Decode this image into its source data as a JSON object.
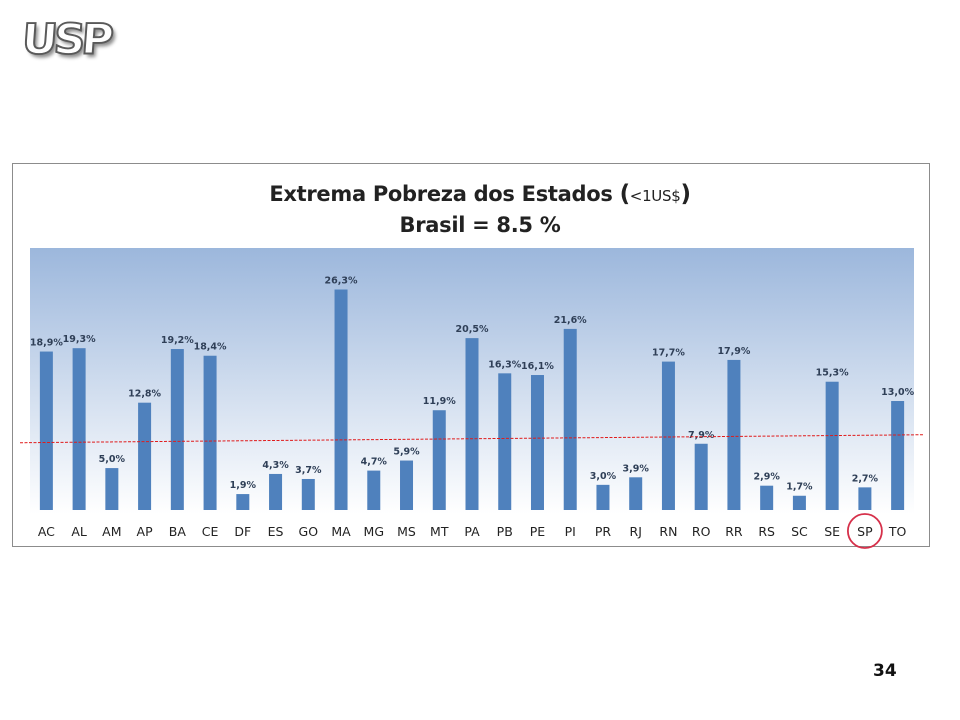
{
  "logo": {
    "text": "USP"
  },
  "page_number": "34",
  "colors": {
    "bar": "#4f81bd",
    "plot_top": "#9cb7dc",
    "plot_bottom": "#ffffff",
    "reference_line": "#e01b1b",
    "highlight_circle": "#d6304a"
  },
  "chart_data": {
    "type": "bar",
    "title_parts": [
      "Extrema Pobreza dos Estados ",
      "(",
      "<1US$",
      ")"
    ],
    "subtitle": "Brasil = 8.5 %",
    "xlabel": "",
    "ylabel": "",
    "ylim": [
      0,
      30
    ],
    "grid": false,
    "legend": "none",
    "reference_value": 8.5,
    "highlighted_category": "SP",
    "categories": [
      "AC",
      "AL",
      "AM",
      "AP",
      "BA",
      "CE",
      "DF",
      "ES",
      "GO",
      "MA",
      "MG",
      "MS",
      "MT",
      "PA",
      "PB",
      "PE",
      "PI",
      "PR",
      "RJ",
      "RN",
      "RO",
      "RR",
      "RS",
      "SC",
      "SE",
      "SP",
      "TO"
    ],
    "values": [
      18.9,
      19.3,
      5.0,
      12.8,
      19.2,
      18.4,
      1.9,
      4.3,
      3.7,
      26.3,
      4.7,
      5.9,
      11.9,
      20.5,
      16.3,
      16.1,
      21.6,
      3.0,
      3.9,
      17.7,
      7.9,
      17.9,
      2.9,
      1.7,
      15.3,
      2.7,
      13.0
    ],
    "value_labels": [
      "18,9%",
      "19,3%",
      "5,0%",
      "12,8%",
      "19,2%",
      "18,4%",
      "1,9%",
      "4,3%",
      "3,7%",
      "26,3%",
      "4,7%",
      "5,9%",
      "11,9%",
      "20,5%",
      "16,3%",
      "16,1%",
      "21,6%",
      "3,0%",
      "3,9%",
      "17,7%",
      "7,9%",
      "17,9%",
      "2,9%",
      "1,7%",
      "15,3%",
      "2,7%",
      "13,0%"
    ]
  }
}
